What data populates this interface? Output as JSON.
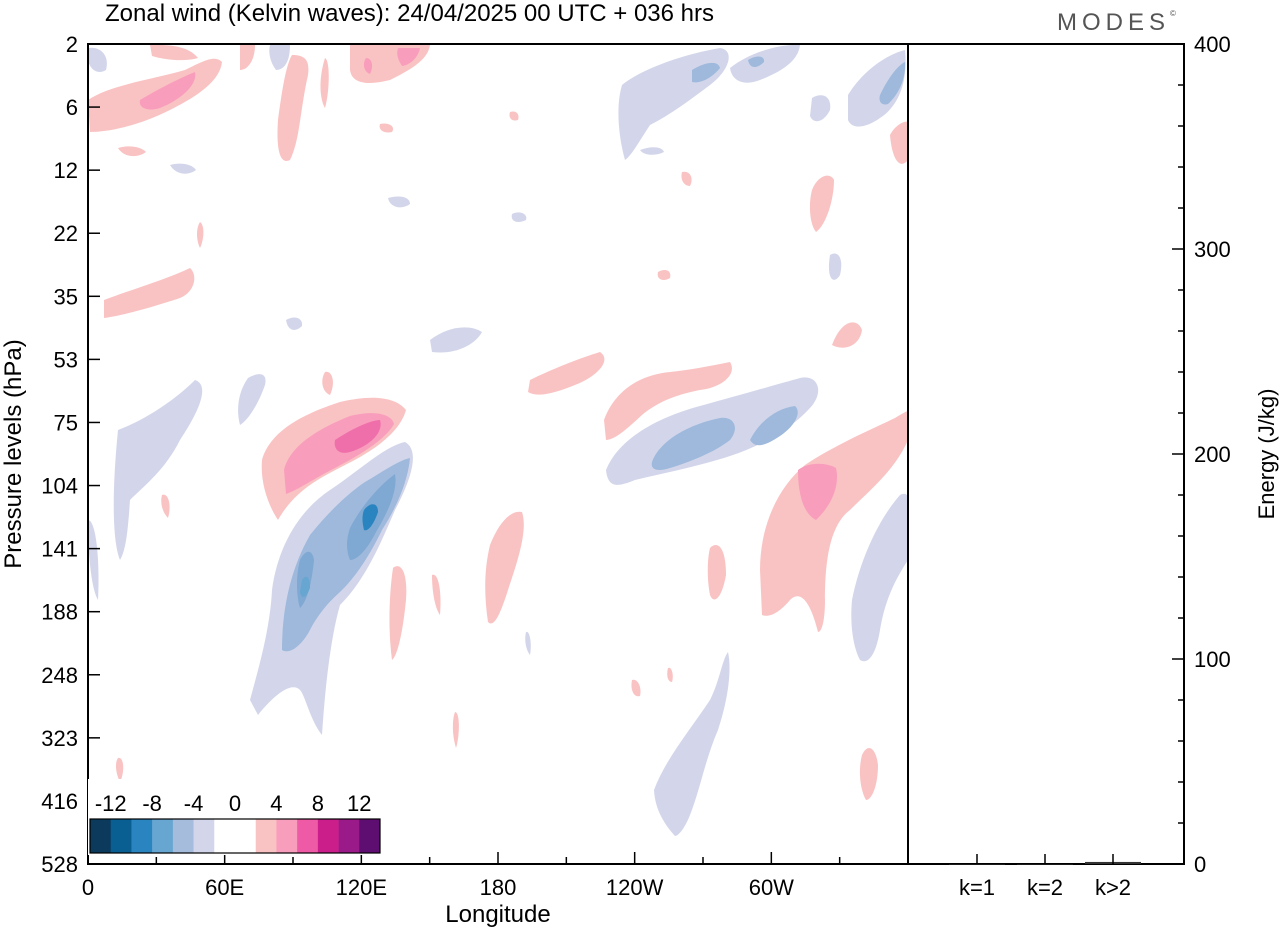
{
  "header": {
    "title": "Zonal wind (Kelvin waves):  24/04/2025  00 UTC  + 036 hrs",
    "logo": "MODES",
    "logo_mark": "©"
  },
  "chart_data": [
    {
      "type": "heatmap",
      "title": "Zonal wind (Kelvin waves):  24/04/2025  00 UTC  + 036 hrs",
      "xlabel": "Longitude",
      "ylabel": "Pressure levels (hPa)",
      "x_ticks": [
        {
          "lon": 0,
          "label": "0"
        },
        {
          "lon": 60,
          "label": "60E"
        },
        {
          "lon": 120,
          "label": "120E"
        },
        {
          "lon": 180,
          "label": "180"
        },
        {
          "lon": 240,
          "label": "120W"
        },
        {
          "lon": 300,
          "label": "60W"
        }
      ],
      "xlim": [
        0,
        360
      ],
      "y_ticks": [
        "2",
        "6",
        "12",
        "22",
        "35",
        "53",
        "75",
        "104",
        "141",
        "188",
        "248",
        "323",
        "416",
        "528"
      ],
      "colorbar": {
        "labels": [
          "-12",
          "-8",
          "-4",
          "0",
          "4",
          "8",
          "12"
        ],
        "colors": [
          "#0c3a5c",
          "#0a5f92",
          "#2a84bf",
          "#66a6d1",
          "#a5bcdd",
          "#d3d6ea",
          "#ffffff",
          "#ffffff",
          "#fac3c3",
          "#f89ebc",
          "#ef5aa6",
          "#cc1e8b",
          "#9b1a8a",
          "#5e0d70"
        ]
      },
      "color_scale": {
        "neg3": "#7fa8d2",
        "neg2": "#9eb9dc",
        "neg1": "#d3d6ea",
        "pos1": "#fac3c3",
        "pos2": "#f89ebc",
        "pos3": "#ef6fab"
      },
      "features": [
        {
          "sign": "pos",
          "lon": [
            8,
            45
          ],
          "level": [
            "6",
            "6"
          ],
          "value": 8
        },
        {
          "sign": "pos",
          "lon": [
            80,
            125
          ],
          "level": [
            "75",
            "104"
          ],
          "value": 9
        },
        {
          "sign": "neg",
          "lon": [
            75,
            130
          ],
          "level": [
            "104",
            "248"
          ],
          "value": -9
        },
        {
          "sign": "neg",
          "lon": [
            230,
            300
          ],
          "level": [
            "75",
            "104"
          ],
          "value": -6
        },
        {
          "sign": "pos",
          "lon": [
            305,
            330
          ],
          "level": [
            "104",
            "141"
          ],
          "value": 6
        },
        {
          "sign": "pos",
          "lon": [
            230,
            270
          ],
          "level": [
            "53",
            "75"
          ],
          "value": 3
        },
        {
          "sign": "neg",
          "lon": [
            235,
            275
          ],
          "level": [
            "248",
            "416"
          ],
          "value": -3
        },
        {
          "sign": "neg",
          "lon": [
            235,
            345
          ],
          "level": [
            "2",
            "6"
          ],
          "value": -4
        }
      ]
    },
    {
      "type": "bar",
      "title": "",
      "categories": [
        "k=1",
        "k=2",
        "k>2"
      ],
      "values": [
        0,
        0,
        1
      ],
      "xlabel": "",
      "ylabel": "Energy (J/kg)",
      "ylim": [
        0,
        400
      ],
      "y_ticks": [
        "0",
        "100",
        "200",
        "300",
        "400"
      ],
      "legend": "none"
    }
  ]
}
